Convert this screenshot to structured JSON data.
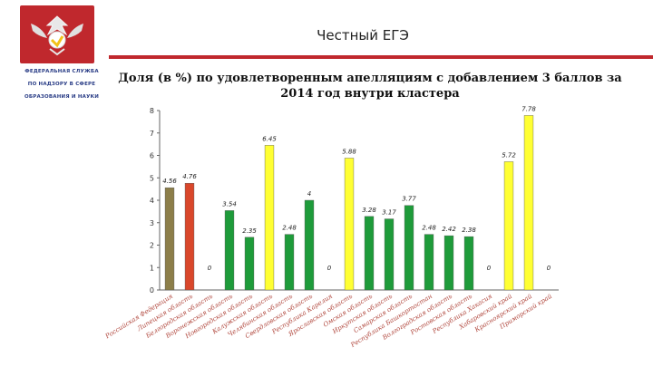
{
  "header": {
    "title": "Честный ЕГЭ",
    "agency_lines": [
      "ФЕДЕРАЛЬНАЯ СЛУЖБА",
      "ПО НАДЗОРУ В СФЕРЕ",
      "ОБРАЗОВАНИЯ И НАУКИ"
    ],
    "emblem_color": "#c0282d",
    "rule_color": "#c0282d"
  },
  "chart_data": {
    "type": "bar",
    "title": "Доля (в %) по удовлетворенным апелляциям с добавлением 3 баллов за 2014 год внутри кластера",
    "categories": [
      "Российская Федерация",
      "Липецкая область",
      "Белгородская область",
      "Воронежская область",
      "Новгородская область",
      "Калужская область",
      "Челябинская область",
      "Свердловская область",
      "Республика Карелия",
      "Ярославская область",
      "Омская область",
      "Иркутская область",
      "Самарская область",
      "Республика Башкортостан",
      "Волгоградская область",
      "Ростовская область",
      "Республика Хакасия",
      "Хабаровский край",
      "Красноярский край",
      "Приморский край"
    ],
    "values": [
      4.56,
      4.76,
      0,
      3.54,
      2.35,
      6.45,
      2.48,
      4,
      0,
      5.88,
      3.28,
      3.17,
      3.77,
      2.48,
      2.42,
      2.38,
      0,
      5.72,
      7.78,
      0
    ],
    "value_labels": [
      "4.56",
      "4.76",
      "0",
      "3.54",
      "2.35",
      "6.45",
      "2.48",
      "4",
      "0",
      "5.88",
      "3.28",
      "3.17",
      "3.77",
      "2.48",
      "2.42",
      "2.38",
      "0",
      "5.72",
      "7.78",
      "0"
    ],
    "colors": [
      "#8c7e49",
      "#d9472b",
      "#1e9b3a",
      "#1e9b3a",
      "#1e9b3a",
      "#ffff33",
      "#1e9b3a",
      "#1e9b3a",
      "#1e9b3a",
      "#ffff33",
      "#1e9b3a",
      "#1e9b3a",
      "#1e9b3a",
      "#1e9b3a",
      "#1e9b3a",
      "#1e9b3a",
      "#1e9b3a",
      "#ffff33",
      "#ffff33",
      "#ffff33"
    ],
    "y_ticks": [
      "0",
      "1",
      "2",
      "3",
      "4",
      "5",
      "6",
      "7",
      "8"
    ],
    "ylim": [
      0,
      8
    ],
    "grid": false,
    "legend": "none"
  }
}
